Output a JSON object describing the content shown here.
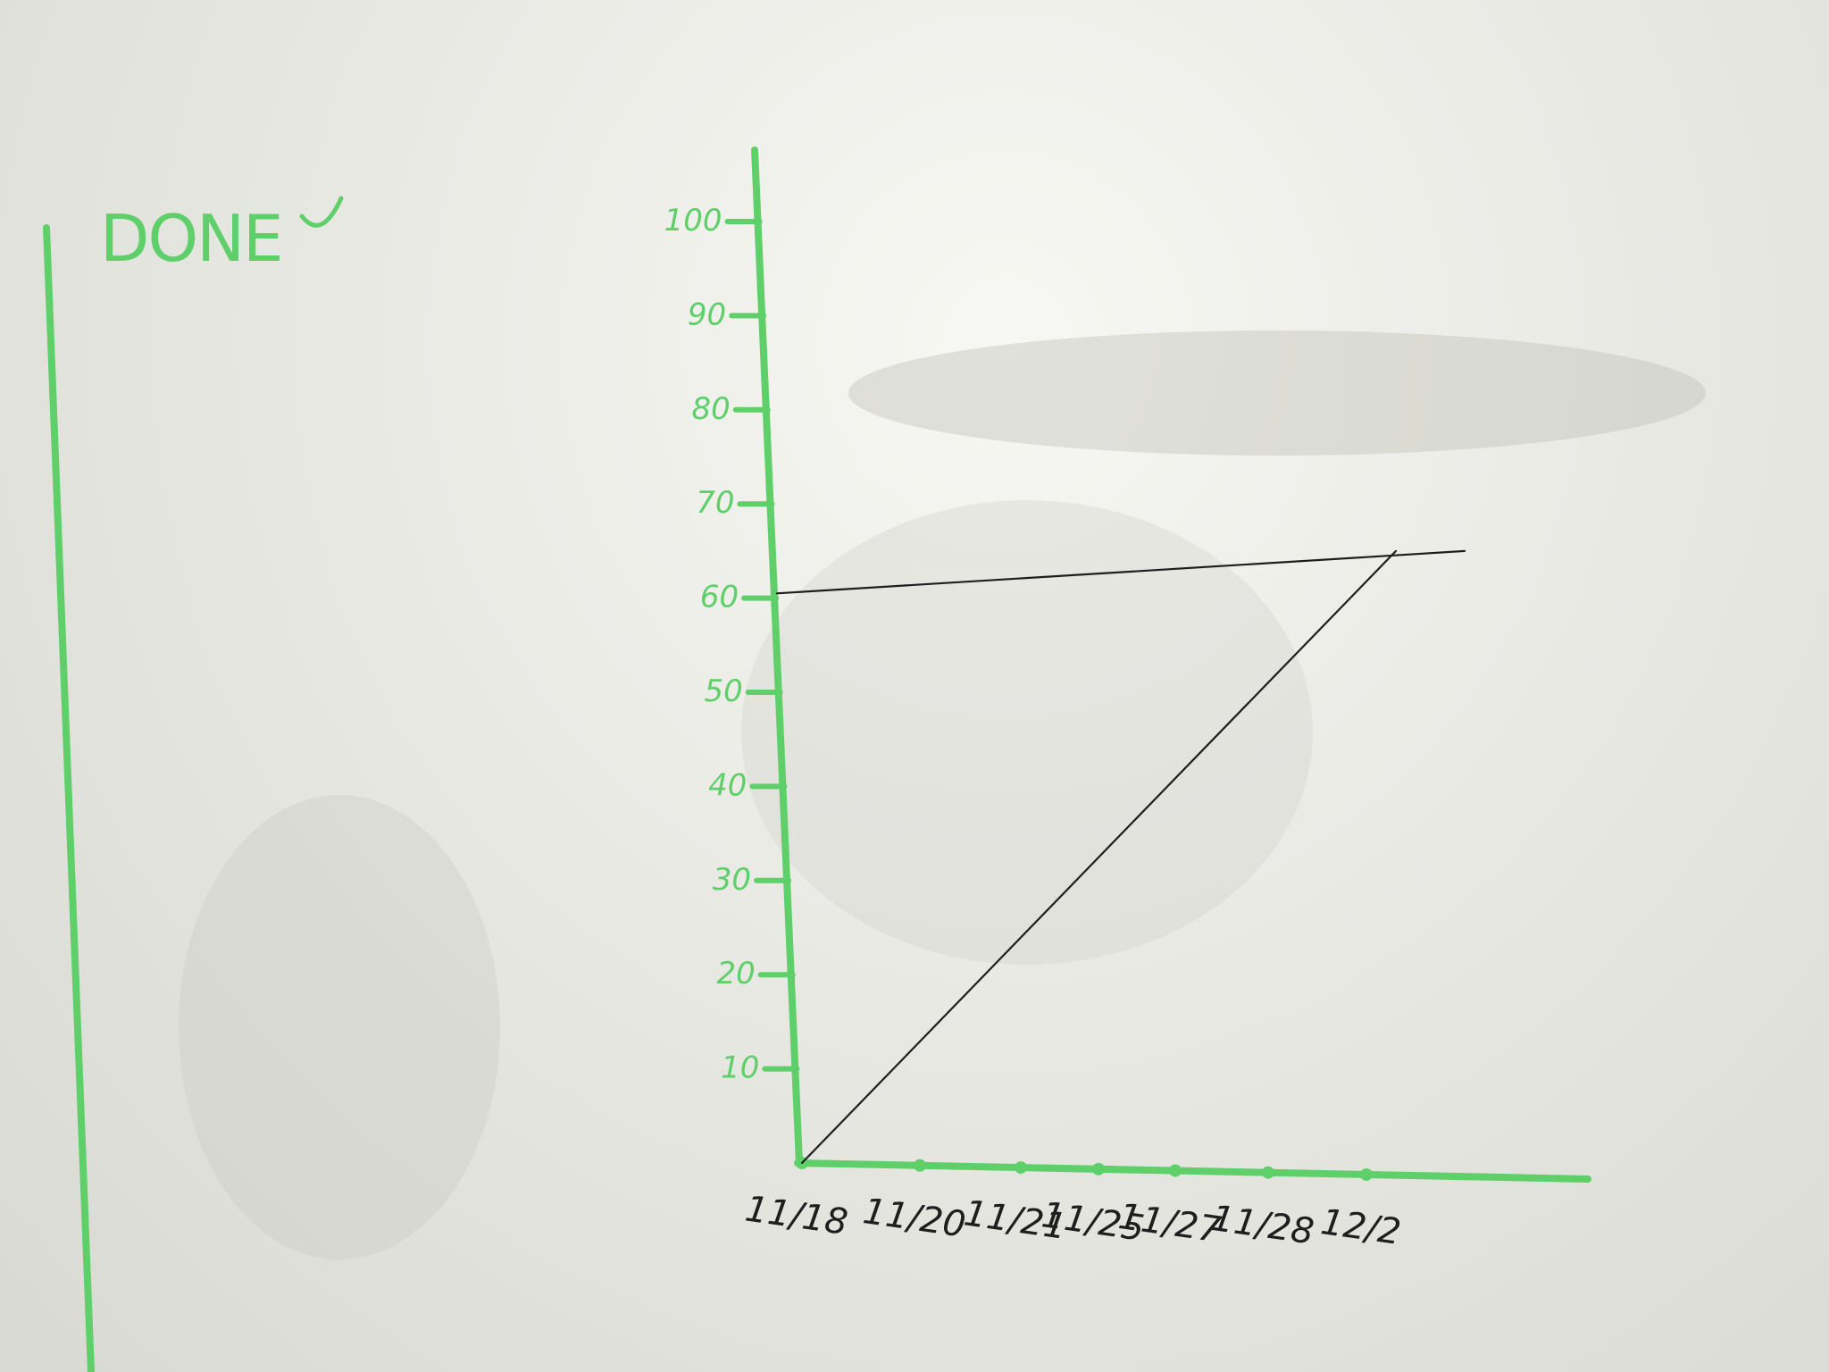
{
  "board": {
    "done_heading": "DONE",
    "colors": {
      "marker_green": "#5fcf6a",
      "pen_black": "#1e1e1e",
      "board": "#eaeae5"
    }
  },
  "chart_data": {
    "type": "line",
    "x_categories": [
      "11/18",
      "11/20",
      "11/21",
      "11/25",
      "11/27",
      "11/28",
      "12/2"
    ],
    "y_ticks": [
      "10",
      "20",
      "30",
      "40",
      "50",
      "60",
      "70",
      "80",
      "90",
      "100"
    ],
    "ylim": [
      0,
      100
    ],
    "series": [
      {
        "kind": "guideline",
        "points": [
          [
            0,
            60.5
          ],
          [
            7.0,
            65
          ]
        ]
      },
      {
        "kind": "trendline",
        "points": [
          [
            0,
            0
          ],
          [
            6.3,
            65
          ]
        ]
      }
    ],
    "grid": false
  }
}
